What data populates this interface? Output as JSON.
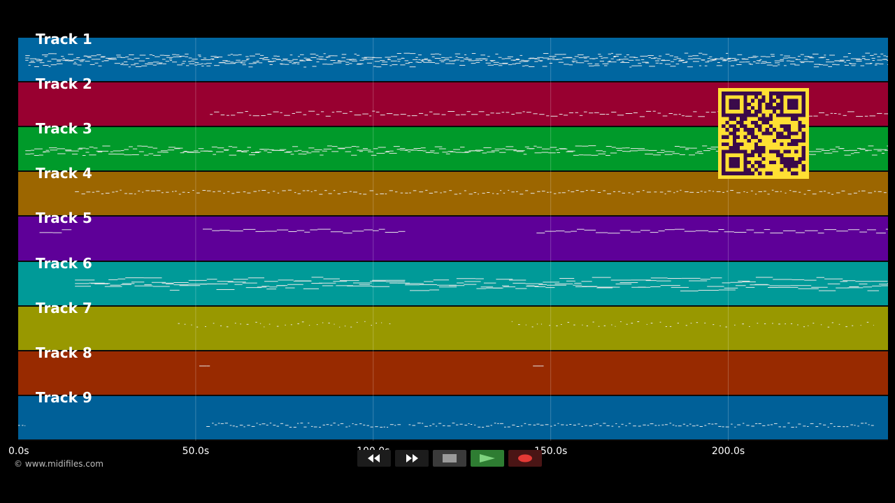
{
  "player": {
    "copyright": "© www.midifiles.com",
    "duration_seconds": 245
  },
  "tracks": [
    {
      "label": "Track 1",
      "color": "#0066a0"
    },
    {
      "label": "Track 2",
      "color": "#980030"
    },
    {
      "label": "Track 3",
      "color": "#009a2a"
    },
    {
      "label": "Track 4",
      "color": "#9c6600"
    },
    {
      "label": "Track 5",
      "color": "#5e0098"
    },
    {
      "label": "Track 6",
      "color": "#009a98"
    },
    {
      "label": "Track 7",
      "color": "#989800"
    },
    {
      "label": "Track 8",
      "color": "#982a00"
    },
    {
      "label": "Track 9",
      "color": "#006098"
    }
  ],
  "timeline": {
    "ticks": [
      {
        "value": 0,
        "label": "0.0s"
      },
      {
        "value": 50,
        "label": "50.0s"
      },
      {
        "value": 100,
        "label": "100.0s"
      },
      {
        "value": 150,
        "label": "150.0s"
      },
      {
        "value": 200,
        "label": "200.0s"
      }
    ]
  },
  "transport": {
    "buttons": [
      {
        "name": "rewind-button",
        "icon": "rewind-icon"
      },
      {
        "name": "fast-forward-button",
        "icon": "fast-forward-icon"
      },
      {
        "name": "stop-button",
        "icon": "stop-icon"
      },
      {
        "name": "play-button",
        "icon": "play-icon"
      },
      {
        "name": "record-button",
        "icon": "record-icon"
      }
    ]
  },
  "qr_code": {
    "color": "#ffe033",
    "ink": "#3a0a4a"
  }
}
